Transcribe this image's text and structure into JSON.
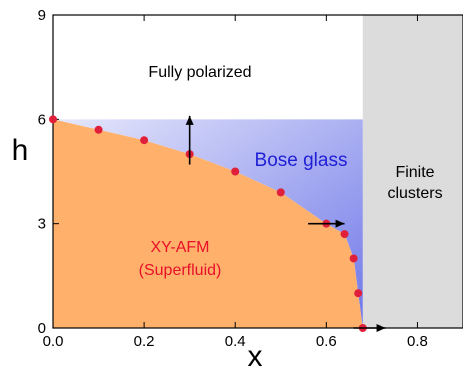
{
  "chart_data": {
    "type": "area",
    "xlabel": "x",
    "ylabel": "h",
    "xlim": [
      0.0,
      0.9
    ],
    "ylim": [
      0,
      9
    ],
    "x_ticks": [
      0.0,
      0.2,
      0.4,
      0.6,
      0.8
    ],
    "x_tick_labels": [
      "0.0",
      "0.2",
      "0.4",
      "0.6",
      "0.8"
    ],
    "y_ticks": [
      0,
      3,
      6,
      9
    ],
    "y_tick_labels": [
      "0",
      "3",
      "6",
      "9"
    ],
    "grid": false,
    "series": [
      {
        "x": [
          0.0,
          0.1,
          0.2,
          0.3,
          0.4,
          0.5,
          0.6,
          0.64,
          0.66,
          0.67,
          0.68
        ],
        "y": [
          6.0,
          5.7,
          5.4,
          5.0,
          4.5,
          3.9,
          3.0,
          2.7,
          2.0,
          1.0,
          0.0
        ]
      }
    ],
    "bose_glass_upper_h": 6.0,
    "percolation_x": 0.68,
    "region_labels": {
      "fully_polarized": "Fully polarized",
      "bose_glass": "Bose glass",
      "finite_clusters_line1": "Finite",
      "finite_clusters_line2": "clusters",
      "afm_line1": "XY-AFM",
      "afm_line2": "(Superfluid)"
    },
    "arrows": [
      {
        "x": 0.3,
        "y": 4.7,
        "dx": 0.0,
        "dy": 1.4
      },
      {
        "x": 0.56,
        "y": 3.0,
        "dx": 0.08,
        "dy": 0.0
      },
      {
        "x": 0.66,
        "y": 0.0,
        "dx": 0.07,
        "dy": 0.0
      }
    ],
    "colors": {
      "afm_fill": "#ffb06b",
      "bose_glass_top": "#e6e8fb",
      "bose_glass_bottom": "#6f77e8",
      "finite_clusters_fill": "#dcdcdc",
      "point": "#e0203a",
      "bose_glass_text": "#1f1fd6",
      "afm_text": "#e8102a"
    }
  }
}
